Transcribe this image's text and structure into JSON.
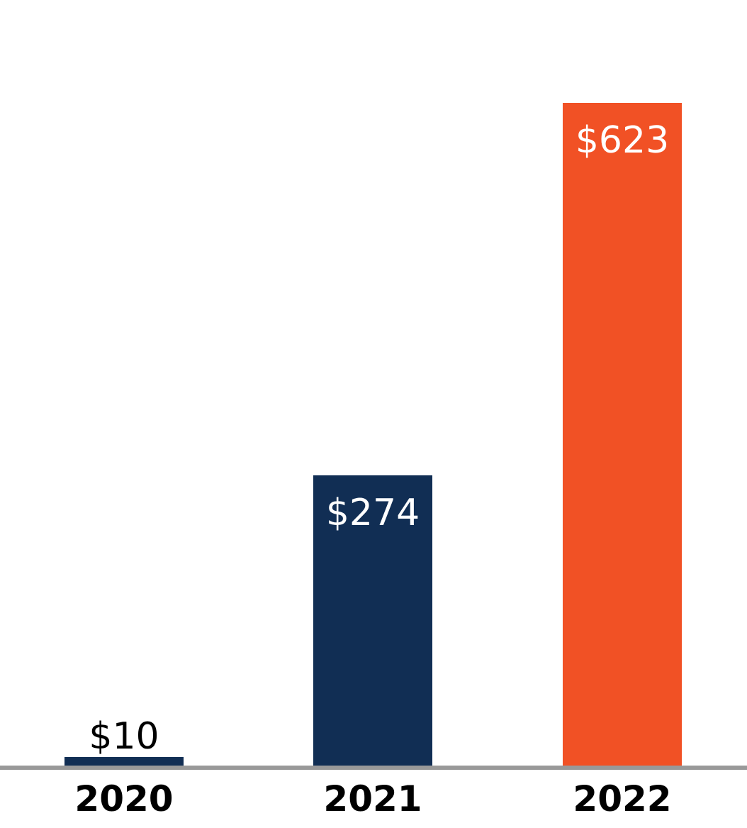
{
  "chart_data": {
    "type": "bar",
    "categories": [
      "2020",
      "2021",
      "2022"
    ],
    "values": [
      10,
      274,
      623
    ],
    "data_labels": [
      "$10",
      "$274",
      "$623"
    ],
    "bar_colors": [
      "#112e54",
      "#112e54",
      "#f15125"
    ],
    "label_colors": [
      "#000000",
      "#ffffff",
      "#ffffff"
    ],
    "axis_color": "#999999",
    "ylim": [
      0,
      623
    ],
    "grid": false,
    "title": "",
    "xlabel": "",
    "ylabel": ""
  }
}
